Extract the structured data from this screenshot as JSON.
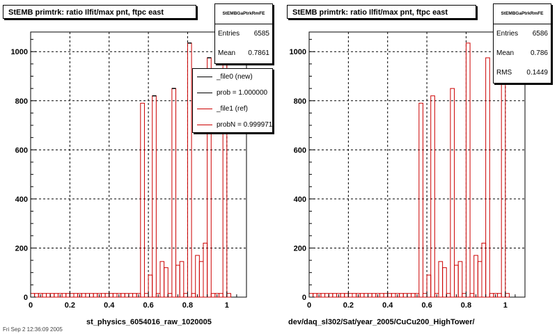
{
  "panels": [
    {
      "title": "StEMB primtrk: ratio Ilfit/max pnt, ftpc east",
      "stats": {
        "header": "StEMBGaPtrkRmFE",
        "rows": [
          {
            "label": "Entries",
            "value": "6585"
          },
          {
            "label": "Mean",
            "value": "0.7861"
          }
        ]
      },
      "legend": [
        {
          "label": "_file0 (new)",
          "color": "#000000"
        },
        {
          "label": "prob = 1.000000",
          "color": "#000000"
        },
        {
          "label": "_file1 (ref)",
          "color": "#cc0000"
        },
        {
          "label": "probN = 0.999971",
          "color": "#cc0000"
        }
      ],
      "xaxis_title": "st_physics_6054016_raw_1020005"
    },
    {
      "title": "StEMB primtrk: ratio Ilfit/max pnt, ftpc east",
      "stats": {
        "header": "StEMBGaPtrkRmFE",
        "rows": [
          {
            "label": "Entries",
            "value": "6586"
          },
          {
            "label": "Mean",
            "value": "0.786"
          },
          {
            "label": "RMS",
            "value": "0.1449"
          }
        ]
      },
      "xaxis_title": "dev/daq_sl302/Sat/year_2005/CuCu200_HighTower/"
    }
  ],
  "footer_text": "Fri Sep  2 12:36:09 2005",
  "chart_data": {
    "type": "bar",
    "bin_width": 0.02,
    "x_range": [
      0,
      1.1
    ],
    "ylim": [
      0,
      1080
    ],
    "x_ticks": [
      "0",
      "0.2",
      "0.4",
      "0.6",
      "0.8",
      "1"
    ],
    "y_ticks": [
      "0",
      "200",
      "400",
      "600",
      "800",
      "1000"
    ],
    "grid": true,
    "colors": {
      "new": "#000000",
      "ref": "#cc0000"
    },
    "bins": [
      {
        "x": 0.0,
        "y": 15
      },
      {
        "x": 0.02,
        "y": 15
      },
      {
        "x": 0.04,
        "y": 15
      },
      {
        "x": 0.06,
        "y": 15
      },
      {
        "x": 0.08,
        "y": 15
      },
      {
        "x": 0.1,
        "y": 15
      },
      {
        "x": 0.12,
        "y": 15
      },
      {
        "x": 0.14,
        "y": 15
      },
      {
        "x": 0.16,
        "y": 15
      },
      {
        "x": 0.18,
        "y": 15
      },
      {
        "x": 0.2,
        "y": 15
      },
      {
        "x": 0.22,
        "y": 15
      },
      {
        "x": 0.24,
        "y": 15
      },
      {
        "x": 0.26,
        "y": 15
      },
      {
        "x": 0.28,
        "y": 15
      },
      {
        "x": 0.3,
        "y": 15
      },
      {
        "x": 0.32,
        "y": 15
      },
      {
        "x": 0.34,
        "y": 15
      },
      {
        "x": 0.36,
        "y": 15
      },
      {
        "x": 0.38,
        "y": 15
      },
      {
        "x": 0.4,
        "y": 15
      },
      {
        "x": 0.42,
        "y": 15
      },
      {
        "x": 0.44,
        "y": 15
      },
      {
        "x": 0.46,
        "y": 15
      },
      {
        "x": 0.48,
        "y": 15
      },
      {
        "x": 0.5,
        "y": 15
      },
      {
        "x": 0.52,
        "y": 15
      },
      {
        "x": 0.54,
        "y": 15
      },
      {
        "x": 0.56,
        "y": 790
      },
      {
        "x": 0.58,
        "y": 15
      },
      {
        "x": 0.6,
        "y": 90
      },
      {
        "x": 0.62,
        "y": 820
      },
      {
        "x": 0.64,
        "y": 15
      },
      {
        "x": 0.66,
        "y": 145
      },
      {
        "x": 0.68,
        "y": 120
      },
      {
        "x": 0.7,
        "y": 15
      },
      {
        "x": 0.72,
        "y": 850
      },
      {
        "x": 0.74,
        "y": 130
      },
      {
        "x": 0.76,
        "y": 145
      },
      {
        "x": 0.78,
        "y": 15
      },
      {
        "x": 0.8,
        "y": 1035
      },
      {
        "x": 0.82,
        "y": 15
      },
      {
        "x": 0.84,
        "y": 170
      },
      {
        "x": 0.86,
        "y": 145
      },
      {
        "x": 0.88,
        "y": 220
      },
      {
        "x": 0.9,
        "y": 975
      },
      {
        "x": 0.92,
        "y": 15
      },
      {
        "x": 0.94,
        "y": 15
      },
      {
        "x": 0.96,
        "y": 15
      },
      {
        "x": 0.98,
        "y": 990
      },
      {
        "x": 1.0,
        "y": 15
      }
    ]
  }
}
